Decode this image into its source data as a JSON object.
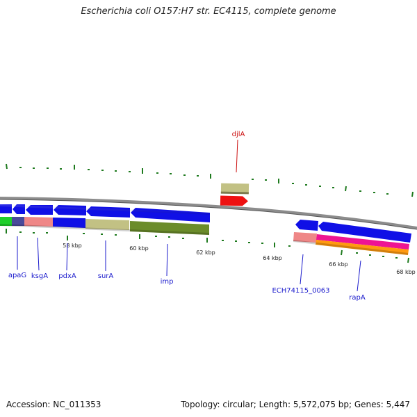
{
  "genome_title": "Escherichia coli O157:H7 str. EC4115, complete genome",
  "footer": {
    "accession": "Accession: NC_011353",
    "stats": "Topology: circular; Length: 5,572,075 bp; Genes: 5,447"
  },
  "scale_labels": [
    "58 kbp",
    "60 kbp",
    "62 kbp",
    "64 kbp",
    "66 kbp",
    "68 kbp"
  ],
  "gene_labels": {
    "djlA": "djlA",
    "apaG": "apaG",
    "ksgA": "ksgA",
    "pdxA": "pdxA",
    "surA": "surA",
    "imp": "imp",
    "ech0063": "ECH74115_0063",
    "rapA": "rapA"
  },
  "colors": {
    "backbone": "#8c8c8c",
    "gene_blue": "#1010e6",
    "gene_red": "#ee1111",
    "khaki": "#c2c184",
    "olive": "#6b8c2a",
    "salmon": "#ef8787",
    "slate": "#4a4a9a",
    "green": "#1fcf2a",
    "magenta": "#ee1493",
    "orange": "#ff9a10",
    "tick": "#1e7a1e",
    "label_blue": "#1a1acc",
    "label_red": "#cc1111"
  }
}
